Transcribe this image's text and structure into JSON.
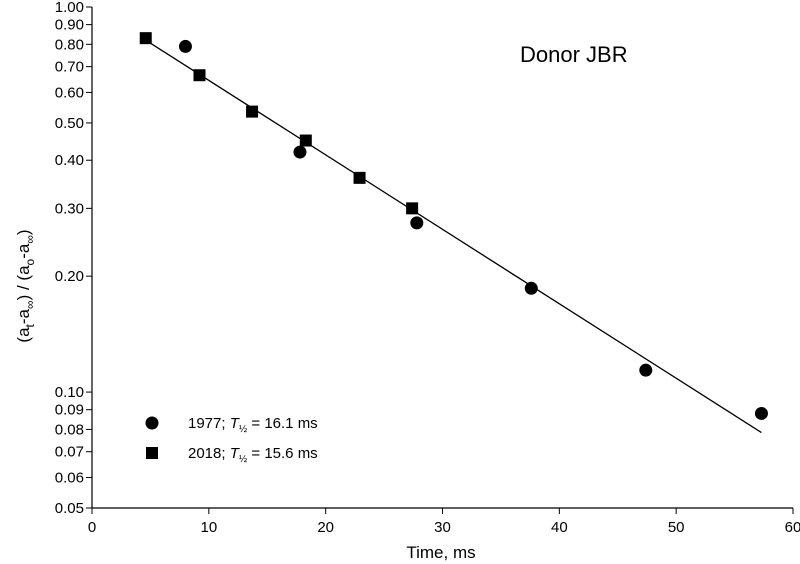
{
  "chart_data": {
    "type": "scatter",
    "title": "",
    "annotation": "Donor JBR",
    "xlabel": "Time, ms",
    "ylabel": {
      "open": "(a",
      "t_sub": "t",
      "dash1": "-a",
      "inf_sub1": "∞",
      "mid": ") / (a",
      "o_sub": "o",
      "dash2": "-a",
      "inf_sub2": "∞",
      "close": ")"
    },
    "xlim": [
      0,
      60
    ],
    "ylim": [
      0.05,
      1.0
    ],
    "yscale": "log",
    "grid": false,
    "legend_position": "bottom-left",
    "x_ticks": [
      0,
      10,
      20,
      30,
      40,
      50,
      60
    ],
    "x_tick_labels": [
      "0",
      "10",
      "20",
      "30",
      "40",
      "50",
      "60"
    ],
    "y_ticks": [
      0.05,
      0.06,
      0.07,
      0.08,
      0.09,
      0.1,
      0.2,
      0.3,
      0.4,
      0.5,
      0.6,
      0.7,
      0.8,
      0.9,
      1.0
    ],
    "y_tick_labels": [
      "0.05",
      "0.06",
      "0.07",
      "0.08",
      "0.09",
      "0.10",
      "0.20",
      "0.30",
      "0.40",
      "0.50",
      "0.60",
      "0.70",
      "0.80",
      "0.90",
      "1.00"
    ],
    "series": [
      {
        "name": "1977",
        "legend": {
          "prefix": "1977; ",
          "t": "T",
          "sub": "½",
          "suffix": " = 16.1 ms"
        },
        "marker": "circle",
        "x": [
          8.0,
          17.8,
          27.8,
          37.6,
          47.4,
          57.3
        ],
        "y": [
          0.79,
          0.42,
          0.275,
          0.186,
          0.114,
          0.088
        ]
      },
      {
        "name": "2018",
        "legend": {
          "prefix": "2018; ",
          "t": "T",
          "sub": "½",
          "suffix": " = 15.6 ms"
        },
        "marker": "square",
        "x": [
          4.6,
          9.2,
          13.7,
          18.3,
          22.9,
          27.4
        ],
        "y": [
          0.83,
          0.665,
          0.535,
          0.45,
          0.36,
          0.3
        ]
      }
    ],
    "fit_line": {
      "x": [
        4.6,
        57.3
      ],
      "y": [
        0.82,
        0.0785
      ]
    },
    "colors": {
      "marker": "#000000",
      "line": "#000000",
      "axis": "#000000"
    }
  }
}
